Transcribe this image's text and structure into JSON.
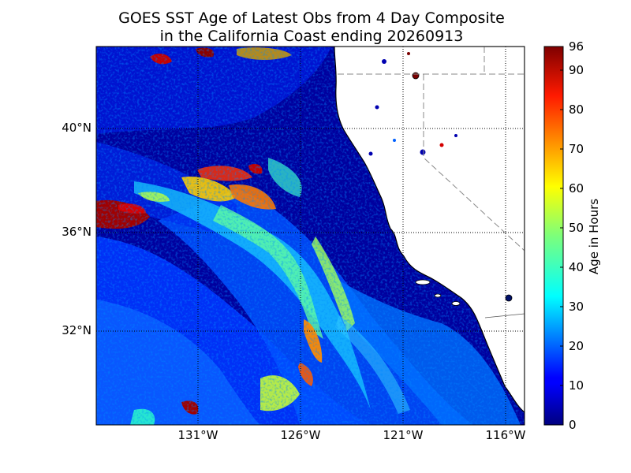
{
  "title": {
    "line1": "GOES SST Age of Latest Obs from 4 Day Composite",
    "line2": "in the California Coast ending 20260913"
  },
  "axes": {
    "lat_labels": [
      "40°N",
      "36°N",
      "32°N"
    ],
    "lon_labels": [
      "131°W",
      "126°W",
      "121°W",
      "116°W"
    ]
  },
  "colorbar": {
    "label": "Age in Hours",
    "ticks": [
      "96",
      "90",
      "80",
      "70",
      "60",
      "50",
      "40",
      "30",
      "20",
      "10",
      "0"
    ],
    "range": [
      0,
      96
    ],
    "colormap": "jet"
  },
  "colors": {
    "land": "#ffffff",
    "ocean_base": "#00009e",
    "graticule": "#000000",
    "state_border": "#888888"
  }
}
